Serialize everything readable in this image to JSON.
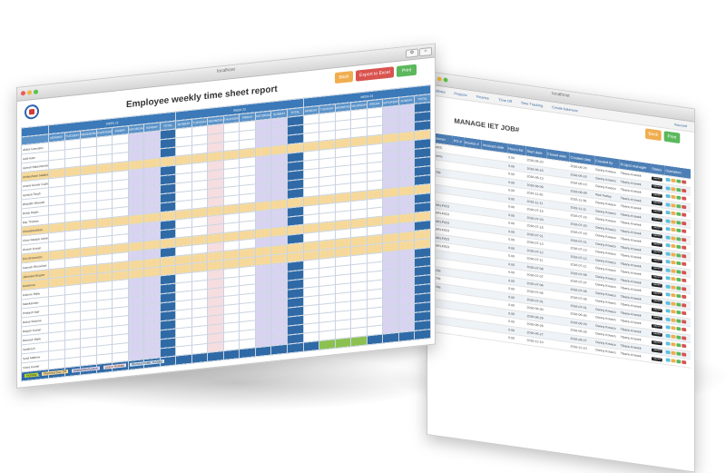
{
  "report": {
    "browser_title": "localhost",
    "title": "Employee weekly time sheet report",
    "buttons": {
      "back": "Back",
      "export": "Export to Excel",
      "print": "Print"
    },
    "weeks": [
      "WEEK 22",
      "WEEK 23",
      "WEEK 24"
    ],
    "days": [
      "MONDAY",
      "TUESDAY",
      "WEDNESDAY",
      "THURSDAY",
      "FRIDAY",
      "SATURDAY",
      "SUNDAY",
      "TOTAL"
    ],
    "employees": [
      "Abbot Gonsales",
      "Adel Kate",
      "Ajeesh Balachandran",
      "Ambeshwar Sadanan",
      "Anand Kumar Gupta",
      "Ayodya Singh",
      "Bharathi Bhosale",
      "Bindu Rajan",
      "Biju Thomas",
      "Chandrashekar",
      "Chris Wadyar Admin",
      "Dinesh Kumar",
      "Eric Brownston",
      "Ganesh Bhooshan",
      "Jahanara Begum",
      "Karishma",
      "Kishore Babu",
      "Manikandan",
      "Prakash Nair",
      "Rahul Sharma",
      "Rajesh Kumar",
      "Ramesh Babu",
      "Santhosh",
      "Sunil Mathew",
      "Vinod Kumar"
    ],
    "total_label": "TOTAL",
    "legend": [
      "Holiday",
      "Planned Day Off",
      "Unplanned Leave",
      "Leave Holiday",
      "Worked Public Holiday"
    ]
  },
  "jobs": {
    "browser_title": "localhost",
    "menu": [
      "Lobbies",
      "Projects",
      "Finance",
      "Time Off",
      "Time Tracking",
      "Create balances"
    ],
    "account": "Account",
    "title": "MANAGE IET JOB#",
    "buttons": {
      "back": "Back",
      "print": "Print"
    },
    "columns": [
      "Customer",
      "PO #",
      "Invoice #",
      "Invoiced date",
      "Hours list",
      "Start date",
      "Closed date",
      "Created date",
      "Created by",
      "Project manager",
      "Status",
      "Operation"
    ],
    "rows": [
      {
        "customer": "DEMOS",
        "hours": "0.00",
        "start": "2016-06-20",
        "created": "2016-06-20",
        "by": "Danny Kovacs",
        "pm": "Tiberiu Kranek",
        "status": "Launch"
      },
      {
        "customer": "Dynamic",
        "hours": "0.00",
        "start": "2016-06-16",
        "created": "2016-06-16",
        "by": "Danny Kovacs",
        "pm": "Tiberiu Kranek",
        "status": "Launch"
      },
      {
        "customer": "IET",
        "hours": "0.00",
        "start": "2016-06-13",
        "created": "2016-06-13",
        "by": "Danny Kovacs",
        "pm": "Tiberiu Kranek",
        "status": "Launch"
      },
      {
        "customer": "ORION",
        "hours": "0.00",
        "start": "2016-06-09",
        "created": "2016-06-09",
        "by": "Rick Farley",
        "pm": "Tiberiu Kranek",
        "status": "Launch"
      },
      {
        "customer": "IET",
        "hours": "0.00",
        "start": "2015-11-30",
        "created": "2015-11-30",
        "by": "Danny Kovacs",
        "pm": "Tiberiu Kranek",
        "status": "Launch"
      },
      {
        "customer": "IET",
        "hours": "0.00",
        "start": "2015-11-11",
        "created": "2015-11-11",
        "by": "Danny Kovacs",
        "pm": "Tiberiu Kranek",
        "status": "Launch"
      },
      {
        "customer": "IET",
        "hours": "0.00",
        "start": "2016-07-15",
        "created": "2016-07-15",
        "by": "Danny Kovacs",
        "pm": "Tiberiu Kranek",
        "status": "Launch"
      },
      {
        "customer": "DOWALFICO",
        "hours": "0.00",
        "start": "2016-07-20",
        "created": "2016-07-20",
        "by": "Danny Kovacs",
        "pm": "Tiberiu Kranek",
        "status": "Launch"
      },
      {
        "customer": "DOWALFICO",
        "hours": "0.00",
        "start": "2016-07-18",
        "created": "2016-07-18",
        "by": "Danny Kovacs",
        "pm": "Tiberiu Kranek",
        "status": "Launch"
      },
      {
        "customer": "DOWALFICO",
        "hours": "0.00",
        "start": "2016-07-21",
        "created": "2016-07-21",
        "by": "Danny Kovacs",
        "pm": "Tiberiu Kranek",
        "status": "Launch"
      },
      {
        "customer": "DOWALFICO",
        "hours": "0.00",
        "start": "2016-07-13",
        "created": "2016-07-13",
        "by": "Danny Kovacs",
        "pm": "Tiberiu Kranek",
        "status": "Launch"
      },
      {
        "customer": "DOWALFICO",
        "hours": "0.00",
        "start": "2016-07-12",
        "created": "2016-07-12",
        "by": "Danny Kovacs",
        "pm": "Tiberiu Kranek",
        "status": "Launch"
      },
      {
        "customer": "DOWALFICO",
        "hours": "0.00",
        "start": "2016-07-11",
        "created": "2016-07-11",
        "by": "Danny Kovacs",
        "pm": "Tiberiu Kranek",
        "status": "Launch"
      },
      {
        "customer": "IET",
        "hours": "0.00",
        "start": "2016-07-08",
        "created": "2016-07-08",
        "by": "Danny Kovacs",
        "pm": "Tiberiu Kranek",
        "status": "Launch"
      },
      {
        "customer": "IET",
        "hours": "0.00",
        "start": "2016-07-07",
        "created": "2016-07-07",
        "by": "Danny Kovacs",
        "pm": "Tiberiu Kranek",
        "status": "Launch"
      },
      {
        "customer": "ORION",
        "hours": "0.00",
        "start": "2016-07-06",
        "created": "2016-07-06",
        "by": "Danny Kovacs",
        "pm": "Tiberiu Kranek",
        "status": "Launch"
      },
      {
        "customer": "ORION",
        "hours": "0.00",
        "start": "2016-07-05",
        "created": "2016-07-05",
        "by": "Danny Kovacs",
        "pm": "Tiberiu Kranek",
        "status": "Launch"
      },
      {
        "customer": "ORION",
        "hours": "0.00",
        "start": "2016-07-01",
        "created": "2016-07-01",
        "by": "Danny Kovacs",
        "pm": "Tiberiu Kranek",
        "status": "Launch"
      },
      {
        "customer": "IET",
        "hours": "0.00",
        "start": "2016-06-30",
        "created": "2016-06-30",
        "by": "Danny Kovacs",
        "pm": "Tiberiu Kranek",
        "status": "Launch"
      },
      {
        "customer": "IET",
        "hours": "0.00",
        "start": "2016-06-29",
        "created": "2016-06-29",
        "by": "Danny Kovacs",
        "pm": "Tiberiu Kranek",
        "status": "Launch"
      },
      {
        "customer": "IET",
        "hours": "0.00",
        "start": "2016-06-28",
        "created": "2016-06-28",
        "by": "Danny Kovacs",
        "pm": "Tiberiu Kranek",
        "status": "Launch"
      },
      {
        "customer": "IET",
        "hours": "0.00",
        "start": "2016-06-27",
        "created": "2016-06-27",
        "by": "Danny Kovacs",
        "pm": "Tiberiu Kranek",
        "status": "Launch"
      },
      {
        "customer": "IET",
        "hours": "0.00",
        "start": "2015-12-10",
        "created": "2015-12-10",
        "by": "Danny Kovacs",
        "pm": "Tiberiu Kranek",
        "status": "Launch"
      }
    ]
  }
}
